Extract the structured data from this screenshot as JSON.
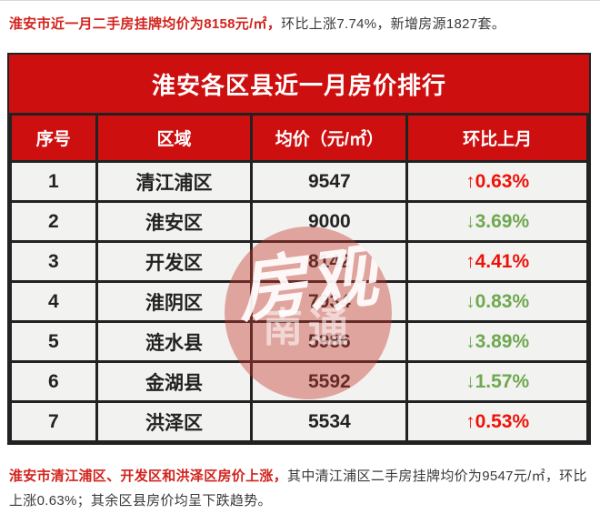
{
  "page": {
    "top_summary": {
      "highlight": "淮安市近一月二手房挂牌均价为8158元/㎡，",
      "rest": "环比上涨7.74%，新增房源1827套。"
    },
    "bottom_summary": {
      "highlight": "淮安市清江浦区、开发区和洪泽区房价上涨，",
      "rest": "其中清江浦区二手房挂牌均价为9547元/㎡，环比上涨0.63%；其余区县房价均呈下跌趋势。"
    }
  },
  "watermark": {
    "main": "房观",
    "sub": "南通"
  },
  "colors": {
    "table_red": "#cd0f0f",
    "cell_background": "#f2f2f0",
    "cell_border": "#222222",
    "rise_red": "#ed1309",
    "fall_green": "#6fa850",
    "highlight_text_red": "#d2231d",
    "body_text": "#3a3a3a",
    "stamp_fill": "rgba(198,58,46,0.42)"
  },
  "chart_data": {
    "type": "table",
    "title": "淮安各区县近一月房价排行",
    "columns": [
      "序号",
      "区域",
      "均价（元/㎡）",
      "环比上月"
    ],
    "rows": [
      {
        "rank": "1",
        "district": "清江浦区",
        "price": "9547",
        "change": "↑0.63%",
        "direction": "up"
      },
      {
        "rank": "2",
        "district": "淮安区",
        "price": "9000",
        "change": "↓3.69%",
        "direction": "down"
      },
      {
        "rank": "3",
        "district": "开发区",
        "price": "8142",
        "change": "↑4.41%",
        "direction": "up"
      },
      {
        "rank": "4",
        "district": "淮阴区",
        "price": "7934",
        "change": "↓0.83%",
        "direction": "down"
      },
      {
        "rank": "5",
        "district": "涟水县",
        "price": "5986",
        "change": "↓3.89%",
        "direction": "down"
      },
      {
        "rank": "6",
        "district": "金湖县",
        "price": "5592",
        "change": "↓1.57%",
        "direction": "down"
      },
      {
        "rank": "7",
        "district": "洪泽区",
        "price": "5534",
        "change": "↑0.53%",
        "direction": "up"
      }
    ]
  }
}
